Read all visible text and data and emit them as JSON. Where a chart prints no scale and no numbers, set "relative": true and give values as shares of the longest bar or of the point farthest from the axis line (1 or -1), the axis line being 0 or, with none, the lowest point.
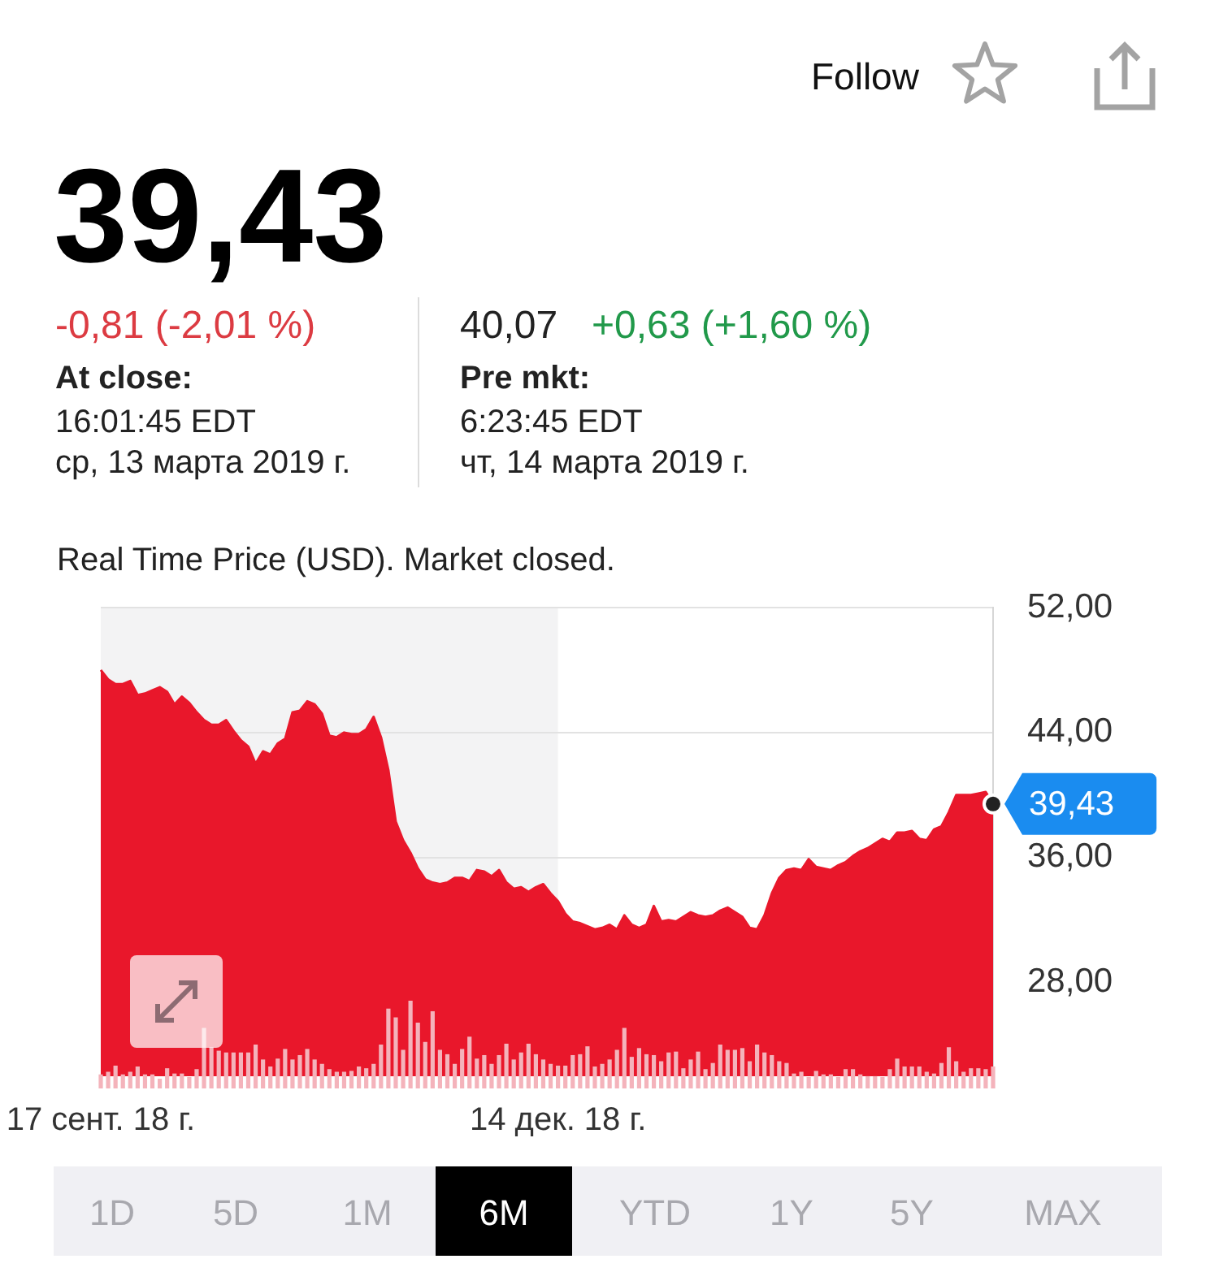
{
  "chart_data": [
    {
      "type": "area",
      "subtitle": "Real Time Price (USD). Market closed.",
      "annotations": [
        "Follow",
        "39,43",
        "-0,81 (-2,01 %)",
        "At close:",
        "16:01:45 EDT",
        "ср, 13 марта 2019 г.",
        "40,07",
        "+0,63 (+1,60 %)",
        "Pre mkt:",
        "6:23:45 EDT",
        "чт, 14 марта 2019 г.",
        "39,43",
        "1D",
        "5D",
        "1M",
        "6M",
        "YTD",
        "1Y",
        "5Y",
        "MAX"
      ],
      "categories": [
        "17 сент. 18 г.",
        null,
        null,
        null,
        null,
        null,
        null,
        null,
        null,
        null,
        null,
        null,
        null,
        null,
        null,
        null,
        null,
        null,
        null,
        null,
        null,
        null,
        null,
        null,
        null,
        null,
        null,
        null,
        null,
        null,
        null,
        null,
        null,
        null,
        null,
        null,
        null,
        null,
        null,
        null,
        null,
        null,
        null,
        null,
        null,
        null,
        null,
        null,
        null,
        null,
        null,
        null,
        null,
        null,
        null,
        null,
        null,
        null,
        null,
        null,
        null,
        null,
        "14 дек. 18 г.",
        null,
        null,
        null,
        null,
        null,
        null,
        null,
        null,
        null,
        null,
        null,
        null,
        null,
        null,
        null,
        null,
        null,
        null,
        null,
        null,
        null,
        null,
        null,
        null,
        null,
        null,
        null,
        null,
        null,
        null,
        null,
        null,
        null,
        null,
        null,
        null,
        null,
        null,
        null,
        null,
        null,
        null,
        null,
        null,
        null,
        null,
        null,
        null,
        null,
        null,
        null,
        null,
        null,
        null,
        null,
        null,
        null,
        null,
        null
      ],
      "series": [
        {
          "color": "#e9172b",
          "values": [
            48.0,
            47.4,
            47.1,
            47.1,
            47.3,
            46.4,
            46.5,
            46.7,
            46.9,
            46.6,
            45.8,
            46.3,
            45.9,
            45.3,
            44.8,
            44.5,
            44.5,
            44.8,
            44.1,
            43.5,
            43.1,
            42.0,
            42.8,
            42.6,
            43.3,
            43.6,
            45.3,
            45.4,
            46.0,
            45.8,
            45.2,
            43.8,
            43.7,
            44.0,
            43.9,
            43.9,
            44.2,
            45.0,
            43.7,
            41.6,
            38.3,
            37.1,
            36.3,
            35.3,
            34.6,
            34.4,
            34.3,
            34.4,
            34.7,
            34.7,
            34.5,
            35.2,
            35.1,
            34.8,
            35.2,
            34.4,
            34.0,
            34.1,
            33.8,
            34.1,
            34.3,
            33.7,
            33.2,
            32.4,
            31.9,
            31.8,
            31.6,
            31.4,
            31.5,
            31.7,
            31.4,
            32.3,
            31.7,
            31.5,
            31.7,
            32.9,
            31.9,
            32.0,
            31.9,
            32.2,
            32.5,
            32.3,
            32.2,
            32.3,
            32.6,
            32.8,
            32.5,
            32.2,
            31.5,
            31.4,
            32.3,
            33.7,
            34.7,
            35.2,
            35.3,
            35.2,
            35.9,
            35.4,
            35.3,
            35.2,
            35.5,
            35.7,
            36.1,
            36.4,
            36.6,
            36.9,
            37.2,
            37.0,
            37.6,
            37.6,
            37.7,
            37.2,
            37.1,
            37.8,
            38.0,
            38.9,
            40.0,
            40.0,
            40.0,
            40.1,
            40.2,
            39.43
          ]
        },
        {
          "type": "scatter",
          "color": "#222222",
          "values": [
            null,
            null,
            null,
            null,
            null,
            null,
            null,
            null,
            null,
            null,
            null,
            null,
            null,
            null,
            null,
            null,
            null,
            null,
            null,
            null,
            null,
            null,
            null,
            null,
            null,
            null,
            null,
            null,
            null,
            null,
            null,
            null,
            null,
            null,
            null,
            null,
            null,
            null,
            null,
            null,
            null,
            null,
            null,
            null,
            null,
            null,
            null,
            null,
            null,
            null,
            null,
            null,
            null,
            null,
            null,
            null,
            null,
            null,
            null,
            null,
            null,
            null,
            null,
            null,
            null,
            null,
            null,
            null,
            null,
            null,
            null,
            null,
            null,
            null,
            null,
            null,
            null,
            null,
            null,
            null,
            null,
            null,
            null,
            null,
            null,
            null,
            null,
            null,
            null,
            null,
            null,
            null,
            null,
            null,
            null,
            null,
            null,
            null,
            null,
            null,
            null,
            null,
            null,
            null,
            null,
            null,
            null,
            null,
            null,
            null,
            null,
            null,
            null,
            null,
            null,
            null,
            null,
            null,
            null,
            null,
            null,
            39.43
          ]
        }
      ],
      "ylim": [
        22,
        52
      ],
      "yticks": [
        {
          "value": 52,
          "label": "52,00"
        },
        {
          "value": 44,
          "label": "44,00"
        },
        {
          "value": 36,
          "label": "36,00"
        },
        {
          "value": 28,
          "label": "28,00"
        }
      ],
      "grid": "y",
      "tick_labels": "y",
      "bands": [
        {
          "axis": "x",
          "from": "17 сент. 18 г.",
          "to": "14 дек. 18 г.",
          "color": "#f3f3f4"
        }
      ]
    },
    {
      "type": "bar",
      "relative": true,
      "color": "#f4b3bb",
      "categories": [
        "17 сент. 18 г.",
        null,
        null,
        null,
        null,
        null,
        null,
        null,
        null,
        null,
        null,
        null,
        null,
        null,
        null,
        null,
        null,
        null,
        null,
        null,
        null,
        null,
        null,
        null,
        null,
        null,
        null,
        null,
        null,
        null,
        null,
        null,
        null,
        null,
        null,
        null,
        null,
        null,
        null,
        null,
        null,
        null,
        null,
        null,
        null,
        null,
        null,
        null,
        null,
        null,
        null,
        null,
        null,
        null,
        null,
        null,
        null,
        null,
        null,
        null,
        null,
        null,
        "14 дек. 18 г.",
        null,
        null,
        null,
        null,
        null,
        null,
        null,
        null,
        null,
        null,
        null,
        null,
        null,
        null,
        null,
        null,
        null,
        null,
        null,
        null,
        null,
        null,
        null,
        null,
        null,
        null,
        null,
        null,
        null,
        null,
        null,
        null,
        null,
        null,
        null,
        null,
        null,
        null,
        null,
        null,
        null,
        null,
        null,
        null,
        null,
        null,
        null,
        null,
        null,
        null,
        null,
        null,
        null,
        null,
        null,
        null,
        null,
        null,
        null
      ],
      "values": [
        0.16,
        0.19,
        0.26,
        0.16,
        0.19,
        0.25,
        0.16,
        0.16,
        0.11,
        0.23,
        0.17,
        0.17,
        0.13,
        0.22,
        0.69,
        0.47,
        0.43,
        0.41,
        0.41,
        0.41,
        0.41,
        0.5,
        0.33,
        0.25,
        0.34,
        0.45,
        0.33,
        0.38,
        0.45,
        0.33,
        0.28,
        0.22,
        0.19,
        0.19,
        0.2,
        0.25,
        0.23,
        0.28,
        0.5,
        0.91,
        0.81,
        0.44,
        1,
        0.75,
        0.53,
        0.88,
        0.44,
        0.39,
        0.28,
        0.45,
        0.59,
        0.34,
        0.38,
        0.28,
        0.38,
        0.51,
        0.33,
        0.41,
        0.51,
        0.39,
        0.33,
        0.28,
        0.26,
        0.26,
        0.38,
        0.39,
        0.48,
        0.25,
        0.28,
        0.33,
        0.44,
        0.69,
        0.36,
        0.46,
        0.39,
        0.38,
        0.31,
        0.41,
        0.42,
        0.23,
        0.33,
        0.42,
        0.22,
        0.29,
        0.5,
        0.44,
        0.44,
        0.46,
        0.31,
        0.5,
        0.41,
        0.38,
        0.31,
        0.29,
        0.17,
        0.19,
        0.13,
        0.2,
        0.16,
        0.16,
        0.13,
        0.22,
        0.22,
        0.16,
        0.14,
        0.14,
        0.13,
        0.22,
        0.34,
        0.25,
        0.25,
        0.25,
        0.19,
        0.17,
        0.29,
        0.47,
        0.31,
        0.19,
        0.23,
        0.23,
        0.22,
        0.25
      ]
    }
  ]
}
